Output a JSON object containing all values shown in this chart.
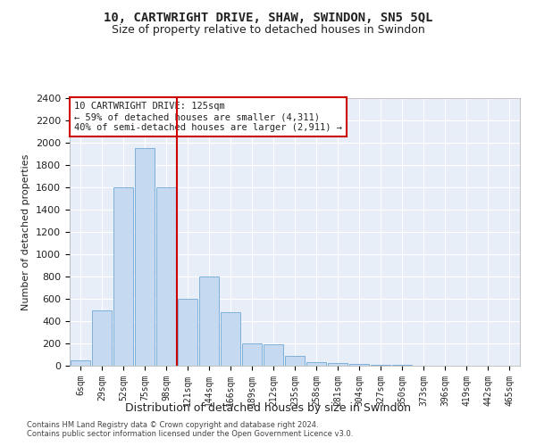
{
  "title1": "10, CARTWRIGHT DRIVE, SHAW, SWINDON, SN5 5QL",
  "title2": "Size of property relative to detached houses in Swindon",
  "xlabel": "Distribution of detached houses by size in Swindon",
  "ylabel": "Number of detached properties",
  "footer1": "Contains HM Land Registry data © Crown copyright and database right 2024.",
  "footer2": "Contains public sector information licensed under the Open Government Licence v3.0.",
  "categories": [
    "6sqm",
    "29sqm",
    "52sqm",
    "75sqm",
    "98sqm",
    "121sqm",
    "144sqm",
    "166sqm",
    "189sqm",
    "212sqm",
    "235sqm",
    "258sqm",
    "281sqm",
    "304sqm",
    "327sqm",
    "350sqm",
    "373sqm",
    "396sqm",
    "419sqm",
    "442sqm",
    "465sqm"
  ],
  "values": [
    50,
    500,
    1600,
    1950,
    1600,
    600,
    800,
    480,
    200,
    190,
    85,
    30,
    25,
    15,
    10,
    8,
    3,
    2,
    1,
    1,
    1
  ],
  "bar_color": "#c5d9f0",
  "bar_edge_color": "#6fa8d6",
  "background_color": "#e8eef8",
  "grid_color": "#ffffff",
  "annotation_box_color": "#ffffff",
  "annotation_border_color": "#cc0000",
  "vline_color": "#cc0000",
  "vline_x_index": 5,
  "annotation_text_line1": "10 CARTWRIGHT DRIVE: 125sqm",
  "annotation_text_line2": "← 59% of detached houses are smaller (4,311)",
  "annotation_text_line3": "40% of semi-detached houses are larger (2,911) →",
  "ylim": [
    0,
    2400
  ],
  "yticks": [
    0,
    200,
    400,
    600,
    800,
    1000,
    1200,
    1400,
    1600,
    1800,
    2000,
    2200,
    2400
  ],
  "fig_bg": "#ffffff"
}
